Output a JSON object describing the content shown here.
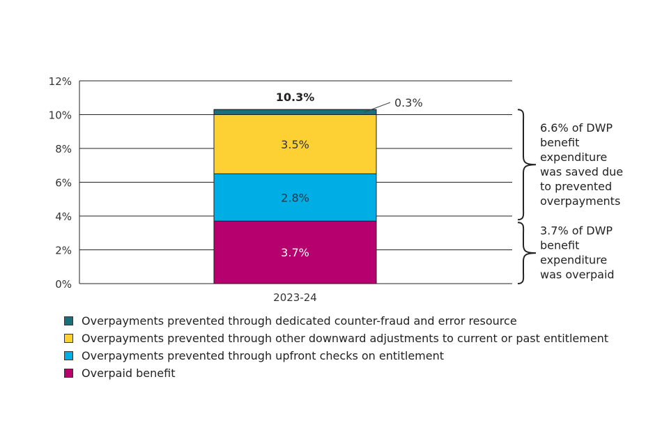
{
  "chart_data": {
    "type": "bar",
    "stacked": true,
    "categories": [
      "2023-24"
    ],
    "series": [
      {
        "name": "Overpaid benefit",
        "values": [
          3.7
        ],
        "label": "3.7%",
        "color": "#b5006e",
        "label_color": "#ffffff"
      },
      {
        "name": "Overpayments prevented through upfront checks on entitlement",
        "values": [
          2.8
        ],
        "label": "2.8%",
        "color": "#00aee6",
        "label_color": "#1f3a4a"
      },
      {
        "name": "Overpayments prevented through other downward adjustments to current or past entitlement",
        "values": [
          3.5
        ],
        "label": "3.5%",
        "color": "#fdd033",
        "label_color": "#333333"
      },
      {
        "name": "Overpayments prevented through dedicated counter-fraud and error resource",
        "values": [
          0.3
        ],
        "label": "0.3%",
        "color": "#1a6f7a",
        "label_color": "#333333"
      }
    ],
    "total_label": "10.3%",
    "y_ticks": [
      "0%",
      "2%",
      "4%",
      "6%",
      "8%",
      "10%",
      "12%"
    ],
    "ylim": [
      0,
      12
    ],
    "grid": true,
    "legend_order": [
      3,
      2,
      1,
      0
    ],
    "annotations": [
      {
        "range": [
          3.7,
          10.3
        ],
        "lines": [
          "6.6% of DWP",
          "benefit",
          "expenditure",
          "was saved due",
          "to prevented",
          "overpayments"
        ]
      },
      {
        "range": [
          0,
          3.7
        ],
        "lines": [
          "3.7% of DWP",
          "benefit",
          "expenditure",
          "was overpaid"
        ]
      }
    ]
  }
}
